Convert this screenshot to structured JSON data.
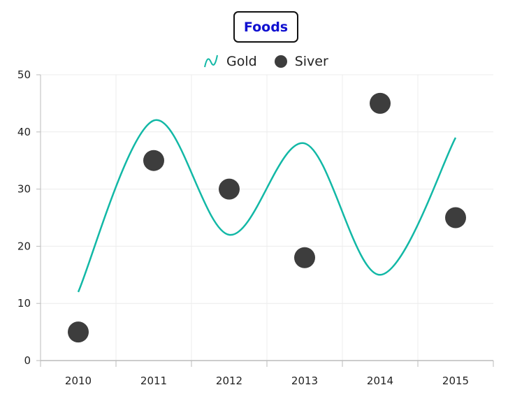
{
  "chart_data": {
    "type": "line",
    "title": "Foods",
    "categories": [
      "2010",
      "2011",
      "2012",
      "2013",
      "2014",
      "2015"
    ],
    "series": [
      {
        "name": "Gold",
        "type": "spline",
        "values": [
          12,
          42,
          22,
          38,
          15,
          39
        ],
        "color": "#12b8a6"
      },
      {
        "name": "Siver",
        "type": "scatter",
        "values": [
          5,
          35,
          30,
          18,
          45,
          25
        ],
        "color": "#3d3d3d"
      }
    ],
    "ylim": [
      0,
      50
    ],
    "yticks": [
      0,
      10,
      20,
      30,
      40,
      50
    ],
    "grid": true,
    "legend_position": "top"
  }
}
